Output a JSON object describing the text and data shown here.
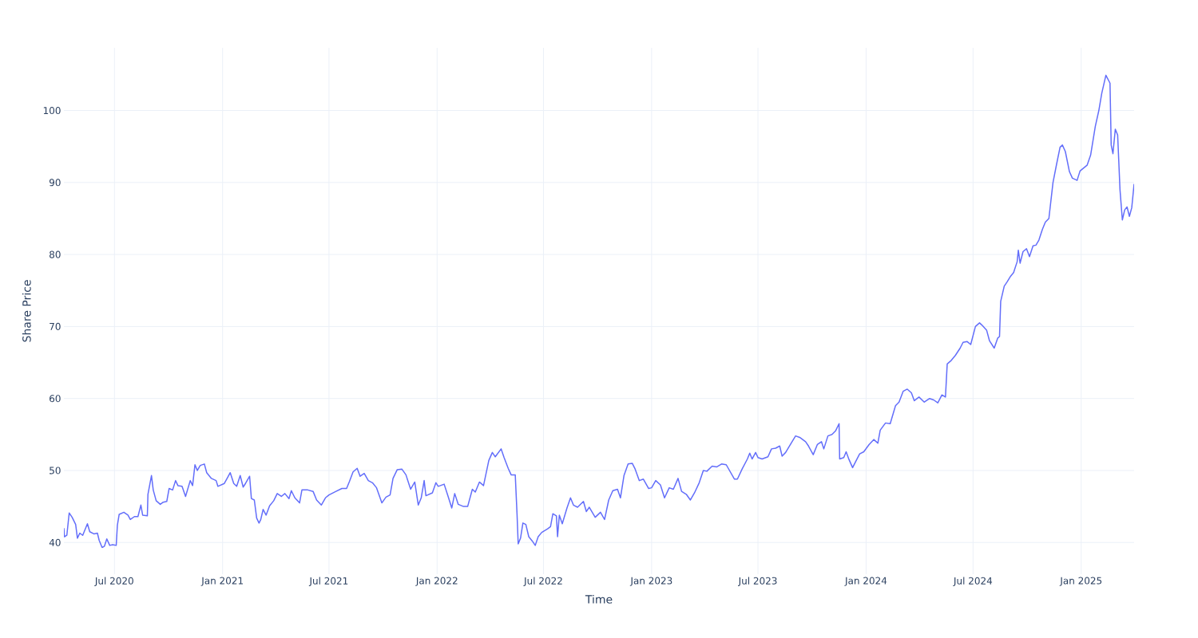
{
  "chart_data": {
    "type": "line",
    "xlabel": "Time",
    "ylabel": "Share Price",
    "grid": true,
    "marker": "none",
    "line_style": "solid",
    "xlim": [
      "2020-04-06",
      "2025-04-01"
    ],
    "ylim": [
      35.6,
      108.7
    ],
    "xticks": [
      {
        "value": "2020-07-01",
        "label": "Jul 2020"
      },
      {
        "value": "2021-01-01",
        "label": "Jan 2021"
      },
      {
        "value": "2021-07-01",
        "label": "Jul 2021"
      },
      {
        "value": "2022-01-01",
        "label": "Jan 2022"
      },
      {
        "value": "2022-07-01",
        "label": "Jul 2022"
      },
      {
        "value": "2023-01-01",
        "label": "Jan 2023"
      },
      {
        "value": "2023-07-01",
        "label": "Jul 2023"
      },
      {
        "value": "2024-01-01",
        "label": "Jan 2024"
      },
      {
        "value": "2024-07-01",
        "label": "Jul 2024"
      },
      {
        "value": "2025-01-01",
        "label": "Jan 2025"
      }
    ],
    "yticks": [
      40,
      50,
      60,
      70,
      80,
      90,
      100
    ],
    "x": [
      "2020-04-06",
      "2020-04-07",
      "2020-04-11",
      "2020-04-15",
      "2020-04-20",
      "2020-04-26",
      "2020-04-29",
      "2020-05-03",
      "2020-05-08",
      "2020-05-16",
      "2020-05-20",
      "2020-05-27",
      "2020-06-02",
      "2020-06-05",
      "2020-06-10",
      "2020-06-14",
      "2020-06-18",
      "2020-06-23",
      "2020-06-28",
      "2020-07-04",
      "2020-07-06",
      "2020-07-09",
      "2020-07-17",
      "2020-07-24",
      "2020-07-28",
      "2020-08-04",
      "2020-08-10",
      "2020-08-15",
      "2020-08-18",
      "2020-08-26",
      "2020-08-27",
      "2020-09-02",
      "2020-09-05",
      "2020-09-10",
      "2020-09-17",
      "2020-09-22",
      "2020-09-28",
      "2020-10-02",
      "2020-10-08",
      "2020-10-13",
      "2020-10-17",
      "2020-10-24",
      "2020-10-30",
      "2020-11-07",
      "2020-11-11",
      "2020-11-15",
      "2020-11-19",
      "2020-11-24",
      "2020-12-01",
      "2020-12-05",
      "2020-12-13",
      "2020-12-21",
      "2020-12-24",
      "2021-01-04",
      "2021-01-10",
      "2021-01-14",
      "2021-01-20",
      "2021-01-25",
      "2021-01-31",
      "2021-02-05",
      "2021-02-09",
      "2021-02-16",
      "2021-02-19",
      "2021-02-24",
      "2021-02-28",
      "2021-03-04",
      "2021-03-07",
      "2021-03-11",
      "2021-03-16",
      "2021-03-22",
      "2021-03-29",
      "2021-04-04",
      "2021-04-11",
      "2021-04-17",
      "2021-04-24",
      "2021-04-28",
      "2021-05-04",
      "2021-05-12",
      "2021-05-16",
      "2021-05-26",
      "2021-06-04",
      "2021-06-10",
      "2021-06-18",
      "2021-06-25",
      "2021-07-01",
      "2021-07-13",
      "2021-07-23",
      "2021-07-31",
      "2021-08-05",
      "2021-08-11",
      "2021-08-18",
      "2021-08-23",
      "2021-08-30",
      "2021-09-06",
      "2021-09-13",
      "2021-09-20",
      "2021-09-29",
      "2021-10-06",
      "2021-10-13",
      "2021-10-18",
      "2021-10-25",
      "2021-11-02",
      "2021-11-09",
      "2021-11-17",
      "2021-11-24",
      "2021-11-30",
      "2021-12-05",
      "2021-12-10",
      "2021-12-13",
      "2021-12-24",
      "2021-12-30",
      "2022-01-03",
      "2022-01-13",
      "2022-01-19",
      "2022-01-26",
      "2022-01-31",
      "2022-02-06",
      "2022-02-15",
      "2022-02-22",
      "2022-03-02",
      "2022-03-07",
      "2022-03-14",
      "2022-03-21",
      "2022-03-30",
      "2022-04-05",
      "2022-04-10",
      "2022-04-20",
      "2022-04-25",
      "2022-05-02",
      "2022-05-07",
      "2022-05-14",
      "2022-05-17",
      "2022-05-19",
      "2022-05-23",
      "2022-05-27",
      "2022-06-01",
      "2022-06-06",
      "2022-06-12",
      "2022-06-17",
      "2022-06-22",
      "2022-06-28",
      "2022-07-08",
      "2022-07-13",
      "2022-07-17",
      "2022-07-23",
      "2022-07-25",
      "2022-07-28",
      "2022-08-02",
      "2022-08-10",
      "2022-08-16",
      "2022-08-21",
      "2022-08-28",
      "2022-09-07",
      "2022-09-12",
      "2022-09-17",
      "2022-09-27",
      "2022-10-06",
      "2022-10-13",
      "2022-10-20",
      "2022-10-27",
      "2022-11-04",
      "2022-11-09",
      "2022-11-15",
      "2022-11-22",
      "2022-11-29",
      "2022-12-04",
      "2022-12-11",
      "2022-12-18",
      "2022-12-27",
      "2023-01-01",
      "2023-01-08",
      "2023-01-16",
      "2023-01-23",
      "2023-01-31",
      "2023-02-07",
      "2023-02-15",
      "2023-02-21",
      "2023-03-01",
      "2023-03-08",
      "2023-03-15",
      "2023-03-23",
      "2023-03-30",
      "2023-04-05",
      "2023-04-14",
      "2023-04-22",
      "2023-04-30",
      "2023-05-08",
      "2023-05-15",
      "2023-05-22",
      "2023-05-27",
      "2023-06-04",
      "2023-06-13",
      "2023-06-17",
      "2023-06-21",
      "2023-06-27",
      "2023-07-01",
      "2023-07-08",
      "2023-07-18",
      "2023-07-24",
      "2023-07-31",
      "2023-08-07",
      "2023-08-11",
      "2023-08-17",
      "2023-08-28",
      "2023-09-03",
      "2023-09-10",
      "2023-09-20",
      "2023-09-25",
      "2023-10-03",
      "2023-10-10",
      "2023-10-17",
      "2023-10-21",
      "2023-10-28",
      "2023-11-04",
      "2023-11-10",
      "2023-11-16",
      "2023-11-17",
      "2023-11-24",
      "2023-11-28",
      "2023-12-03",
      "2023-12-09",
      "2023-12-14",
      "2023-12-21",
      "2023-12-28",
      "2024-01-06",
      "2024-01-14",
      "2024-01-21",
      "2024-01-25",
      "2024-02-03",
      "2024-02-11",
      "2024-02-20",
      "2024-02-26",
      "2024-03-04",
      "2024-03-11",
      "2024-03-18",
      "2024-03-23",
      "2024-03-31",
      "2024-04-09",
      "2024-04-18",
      "2024-04-25",
      "2024-05-02",
      "2024-05-09",
      "2024-05-15",
      "2024-05-18",
      "2024-05-25",
      "2024-06-01",
      "2024-06-09",
      "2024-06-14",
      "2024-06-21",
      "2024-06-27",
      "2024-07-05",
      "2024-07-12",
      "2024-07-16",
      "2024-07-24",
      "2024-07-29",
      "2024-08-06",
      "2024-08-12",
      "2024-08-15",
      "2024-08-17",
      "2024-08-23",
      "2024-08-28",
      "2024-09-03",
      "2024-09-08",
      "2024-09-14",
      "2024-09-16",
      "2024-09-19",
      "2024-09-24",
      "2024-09-30",
      "2024-10-05",
      "2024-10-11",
      "2024-10-16",
      "2024-10-21",
      "2024-10-27",
      "2024-11-01",
      "2024-11-07",
      "2024-11-14",
      "2024-11-20",
      "2024-11-26",
      "2024-11-30",
      "2024-12-05",
      "2024-12-12",
      "2024-12-17",
      "2024-12-25",
      "2024-12-30",
      "2025-01-05",
      "2025-01-11",
      "2025-01-17",
      "2025-01-25",
      "2025-01-31",
      "2025-02-05",
      "2025-02-12",
      "2025-02-19",
      "2025-02-21",
      "2025-02-24",
      "2025-02-28",
      "2025-03-04",
      "2025-03-08",
      "2025-03-12",
      "2025-03-16",
      "2025-03-20",
      "2025-03-24",
      "2025-03-28",
      "2025-04-01"
    ],
    "series": [
      {
        "color": "#636efa",
        "values": [
          42.0,
          40.8,
          41.0,
          44.1,
          43.5,
          42.5,
          40.6,
          41.3,
          41.0,
          42.6,
          41.5,
          41.2,
          41.3,
          40.3,
          39.3,
          39.5,
          40.5,
          39.6,
          39.7,
          39.6,
          42.4,
          43.9,
          44.2,
          43.8,
          43.2,
          43.6,
          43.6,
          45.2,
          43.8,
          43.7,
          46.7,
          49.3,
          47.3,
          45.8,
          45.3,
          45.6,
          45.7,
          47.5,
          47.3,
          48.6,
          47.9,
          47.8,
          46.4,
          48.6,
          47.9,
          50.8,
          50.0,
          50.7,
          50.9,
          49.7,
          48.9,
          48.6,
          47.8,
          48.2,
          49.1,
          49.7,
          48.2,
          47.8,
          49.3,
          47.7,
          48.2,
          49.2,
          46.1,
          45.9,
          43.4,
          42.7,
          43.2,
          44.6,
          43.8,
          45.1,
          45.8,
          46.8,
          46.4,
          46.8,
          46.1,
          47.2,
          46.2,
          45.5,
          47.3,
          47.3,
          47.1,
          45.9,
          45.2,
          46.2,
          46.6,
          47.1,
          47.5,
          47.5,
          48.5,
          49.8,
          50.3,
          49.2,
          49.6,
          48.6,
          48.3,
          47.6,
          45.5,
          46.3,
          46.6,
          48.9,
          50.1,
          50.2,
          49.4,
          47.4,
          48.4,
          45.2,
          46.2,
          48.6,
          46.5,
          46.9,
          48.3,
          47.8,
          48.1,
          46.6,
          44.8,
          46.8,
          45.3,
          45.0,
          45.0,
          47.4,
          47.0,
          48.4,
          47.9,
          51.4,
          52.5,
          51.9,
          53.0,
          51.8,
          50.3,
          49.4,
          49.4,
          44.0,
          39.8,
          40.6,
          42.7,
          42.5,
          40.8,
          40.2,
          39.6,
          40.8,
          41.4,
          41.9,
          42.2,
          44.0,
          43.7,
          40.8,
          43.8,
          42.6,
          44.8,
          46.2,
          45.2,
          44.9,
          45.7,
          44.3,
          44.9,
          43.5,
          44.2,
          43.2,
          45.9,
          47.2,
          47.4,
          46.2,
          49.3,
          50.9,
          51.0,
          50.2,
          48.6,
          48.8,
          47.5,
          47.6,
          48.6,
          48.0,
          46.2,
          47.6,
          47.4,
          48.9,
          47.1,
          46.7,
          45.9,
          46.9,
          48.3,
          50.0,
          49.9,
          50.6,
          50.5,
          50.9,
          50.8,
          49.8,
          48.8,
          48.8,
          50.2,
          51.6,
          52.4,
          51.6,
          52.5,
          51.8,
          51.6,
          51.9,
          53.0,
          53.1,
          53.4,
          52.0,
          52.5,
          54.0,
          54.8,
          54.6,
          54.0,
          53.4,
          52.2,
          53.6,
          54.0,
          53.0,
          54.8,
          55.0,
          55.5,
          56.5,
          51.6,
          51.8,
          52.6,
          51.5,
          50.4,
          51.2,
          52.3,
          52.6,
          53.6,
          54.3,
          53.8,
          55.6,
          56.6,
          56.5,
          59.0,
          59.5,
          61.0,
          61.3,
          60.8,
          59.7,
          60.2,
          59.5,
          60.0,
          59.8,
          59.4,
          60.5,
          60.2,
          64.8,
          65.3,
          66.0,
          67.0,
          67.8,
          67.9,
          67.5,
          70.0,
          70.5,
          70.2,
          69.5,
          68.0,
          67.0,
          68.4,
          68.6,
          73.5,
          75.6,
          76.2,
          77.0,
          77.5,
          79.0,
          80.6,
          78.8,
          80.4,
          80.8,
          79.7,
          81.2,
          81.3,
          82.0,
          83.5,
          84.5,
          85.0,
          90.0,
          92.5,
          94.9,
          95.2,
          94.3,
          91.5,
          90.6,
          90.3,
          91.6,
          92.0,
          92.4,
          93.8,
          97.8,
          100.0,
          102.4,
          104.9,
          103.8,
          95.2,
          94.0,
          97.4,
          96.6,
          89.0,
          84.8,
          86.2,
          86.6,
          85.3,
          86.5,
          89.8
        ]
      }
    ]
  }
}
